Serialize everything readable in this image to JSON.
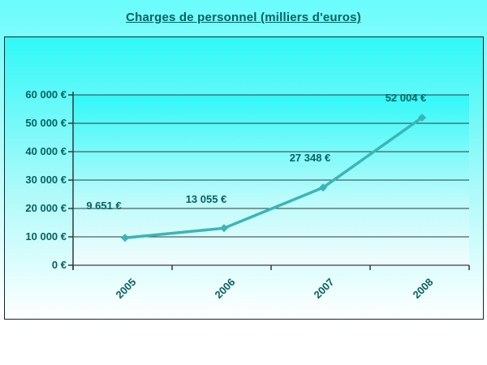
{
  "chart_data": {
    "type": "line",
    "title": "Charges de personnel (milliers d'euros)",
    "categories": [
      "2005",
      "2006",
      "2007",
      "2008"
    ],
    "values": [
      9651,
      13055,
      27348,
      52004
    ],
    "data_labels": [
      "9 651 €",
      "13 055 €",
      "27 348 €",
      "52 004 €"
    ],
    "y_axis": {
      "min": 0,
      "max": 60000,
      "step": 10000,
      "tick_labels": [
        "0 €",
        "10 000 €",
        "20 000 €",
        "30 000 €",
        "40 000 €",
        "50 000 €",
        "60 000 €"
      ]
    },
    "grid": "horizontal",
    "legend": "none",
    "marker": "diamond",
    "colors": {
      "line": "#3bb5b5",
      "text": "#0a6060",
      "gridline": "#2f3b3b",
      "axis": "#7f8490",
      "frame_border": "#0e2929",
      "plot_top": "#30f8f8",
      "plot_bottom": "#f2fcfc",
      "box_top": "#30f8f8",
      "box_bottom": "#ffffff",
      "page_top": "#6afcfc",
      "page_bottom": "#ffffff"
    }
  }
}
